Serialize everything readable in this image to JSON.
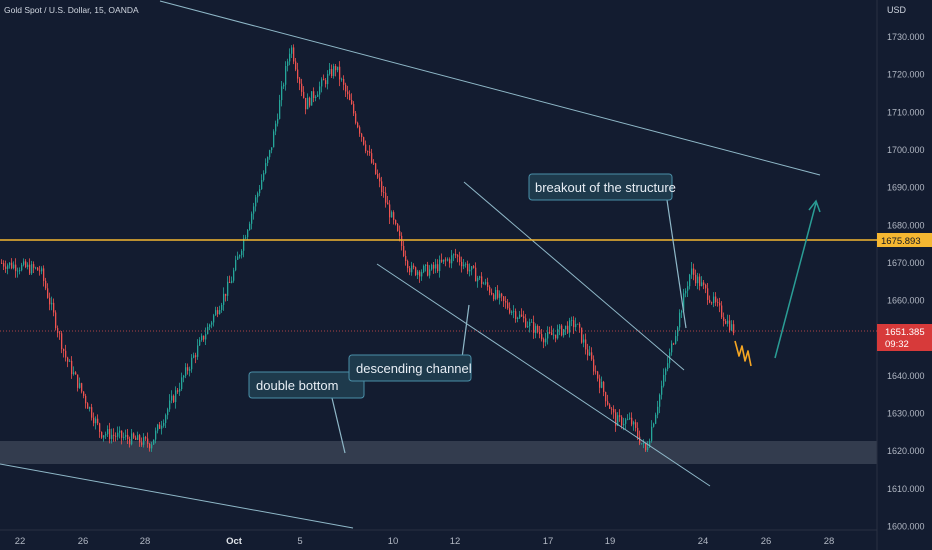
{
  "header": {
    "symbol_title": "Gold Spot / U.S. Dollar, 15, OANDA",
    "currency": "USD"
  },
  "price_scale": {
    "tick_labels": [
      "1730.000",
      "1720.000",
      "1710.000",
      "1700.000",
      "1690.000",
      "1680.000",
      "1670.000",
      "1660.000",
      "1650.000",
      "1640.000",
      "1630.000",
      "1620.000",
      "1610.000",
      "1600.000"
    ],
    "resistance_badge": "1675.893",
    "last_price_badge": "1651.385",
    "countdown": "09:32"
  },
  "time_axis": {
    "tick_labels": [
      "22",
      "26",
      "28",
      "Oct",
      "5",
      "10",
      "12",
      "17",
      "19",
      "24",
      "26",
      "28"
    ]
  },
  "annotations": {
    "double_bottom": "double bottom",
    "descending_channel": "descending channel",
    "breakout": "breakout of the structure"
  },
  "colors": {
    "background": "#131c30",
    "bull": "#26a69a",
    "bear": "#ef5350",
    "resistance": "#f5b731",
    "support_zone": "#3a4254",
    "trendline": "#8fb8c8",
    "arrow": "#2a9d95",
    "projection": "#f5a623"
  },
  "chart_data": {
    "type": "candlestick",
    "title": "Gold Spot / U.S. Dollar, 15, OANDA",
    "ylabel": "USD",
    "ylim": [
      1600,
      1735
    ],
    "x_ticks": [
      "22",
      "26",
      "28",
      "Oct",
      "5",
      "10",
      "12",
      "17",
      "19",
      "24",
      "26",
      "28"
    ],
    "approx_close_path": [
      {
        "x": "22",
        "y": 1670
      },
      {
        "x": "24",
        "y": 1668
      },
      {
        "x": "26",
        "y": 1645
      },
      {
        "x": "27",
        "y": 1625
      },
      {
        "x": "28",
        "y": 1622
      },
      {
        "x": "Oct",
        "y": 1665
      },
      {
        "x": "3",
        "y": 1700
      },
      {
        "x": "4",
        "y": 1728
      },
      {
        "x": "5",
        "y": 1712
      },
      {
        "x": "6",
        "y": 1722
      },
      {
        "x": "7",
        "y": 1712
      },
      {
        "x": "8",
        "y": 1690
      },
      {
        "x": "10",
        "y": 1668
      },
      {
        "x": "11",
        "y": 1668
      },
      {
        "x": "12",
        "y": 1672
      },
      {
        "x": "14",
        "y": 1660
      },
      {
        "x": "17",
        "y": 1650
      },
      {
        "x": "18",
        "y": 1654
      },
      {
        "x": "19",
        "y": 1628
      },
      {
        "x": "20",
        "y": 1628
      },
      {
        "x": "21",
        "y": 1620
      },
      {
        "x": "23",
        "y": 1668
      },
      {
        "x": "24",
        "y": 1651.385
      }
    ],
    "levels": {
      "resistance": 1675.893,
      "support_zone": [
        1617,
        1622
      ],
      "last_price": 1651.385
    },
    "annotations": [
      "double bottom",
      "descending channel",
      "breakout of the structure"
    ]
  }
}
